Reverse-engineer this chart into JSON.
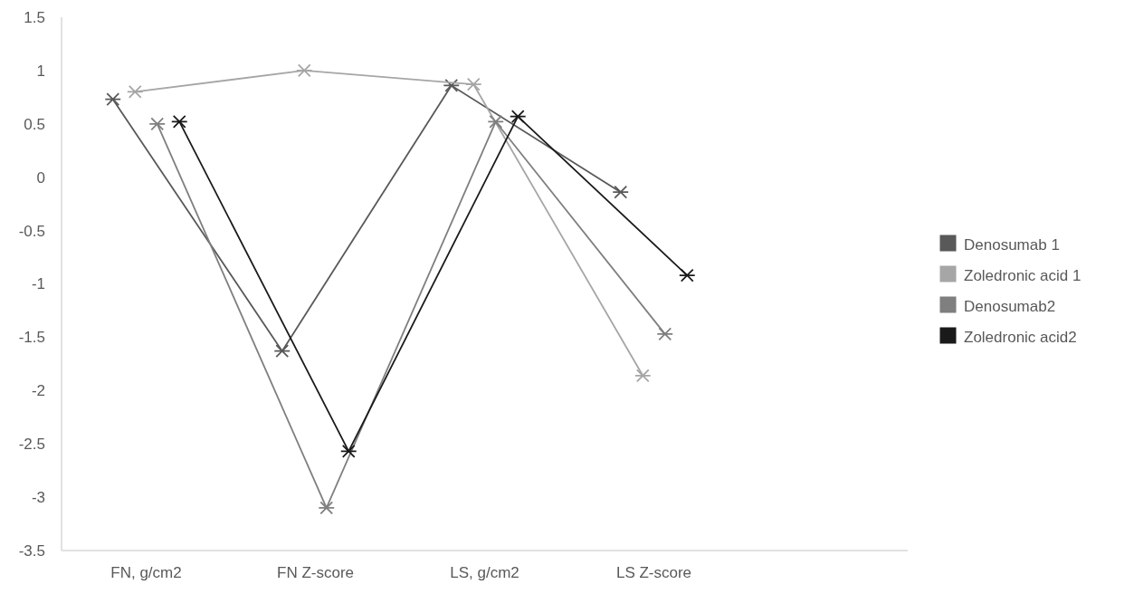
{
  "chart_data": {
    "type": "line",
    "categories": [
      "FN, g/cm2",
      "FN Z-score",
      "LS, g/cm2",
      "LS Z-score",
      null
    ],
    "series": [
      {
        "name": "Denosumab 1",
        "color": "#595959",
        "values": [
          0.73,
          -1.63,
          0.86,
          -0.14,
          null
        ]
      },
      {
        "name": "Zoledronic acid 1",
        "color": "#a6a6a6",
        "values": [
          0.8,
          1.0,
          0.87,
          -1.86,
          null
        ]
      },
      {
        "name": "Denosumab2",
        "color": "#7f7f7f",
        "values": [
          0.5,
          -3.1,
          0.52,
          -1.47,
          null
        ]
      },
      {
        "name": "Zoledronic acid2",
        "color": "#1a1a1a",
        "values": [
          0.52,
          -2.57,
          0.57,
          -0.92,
          null
        ]
      }
    ],
    "ylim": [
      -3.5,
      1.5
    ],
    "yticks": [
      -3.5,
      -3,
      -2.5,
      -2,
      -1.5,
      -1,
      -0.5,
      0,
      0.5,
      1,
      1.5
    ],
    "grid": false,
    "legend": "right",
    "marker": "cross",
    "line_style": "solid"
  }
}
